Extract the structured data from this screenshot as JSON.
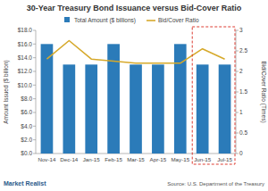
{
  "chart_data": {
    "type": "bar",
    "title": "30-Year Treasury Bond Issuance versus Bid-Cover Ratio",
    "y_label": "Amount Issued ($ billion)",
    "y2_label": "Bid/Cover Ratio (Times)",
    "source": "Source: U.S. Department of the Treasury",
    "logo": "Market Realist",
    "categories": [
      "Nov-14",
      "Dec-14",
      "Jan-15",
      "Feb-15",
      "Mar-15",
      "Apr-15",
      "May-15",
      "Jun-15",
      "Jul-15"
    ],
    "series": [
      {
        "name": "Total Amount ($ billions)",
        "type": "bar",
        "color": "#2b7bb9",
        "values": [
          16,
          13,
          13,
          16,
          13,
          13,
          16,
          13,
          13
        ]
      },
      {
        "name": "Bid/Cover Ratio",
        "type": "line",
        "axis": "y2",
        "color": "#d6a92b",
        "values": [
          2.3,
          2.75,
          2.3,
          2.25,
          2.2,
          2.2,
          2.2,
          2.55,
          2.3
        ]
      }
    ],
    "ylim": [
      0,
      18
    ],
    "yticks": [
      {
        "value": 0,
        "label": "$0.0"
      },
      {
        "value": 2,
        "label": "$2.0"
      },
      {
        "value": 4,
        "label": "$4.0"
      },
      {
        "value": 6,
        "label": "$6.0"
      },
      {
        "value": 8,
        "label": "$8.0"
      },
      {
        "value": 10,
        "label": "$10.0"
      },
      {
        "value": 12,
        "label": "$12.0"
      },
      {
        "value": 14,
        "label": "$14.0"
      },
      {
        "value": 16,
        "label": "$16.0"
      },
      {
        "value": 18,
        "label": "$18.0"
      }
    ],
    "y2lim": [
      0,
      3
    ],
    "y2ticks": [
      0,
      0.5,
      1,
      1.5,
      2,
      2.5,
      3
    ],
    "grid": false,
    "legend": "top"
  }
}
